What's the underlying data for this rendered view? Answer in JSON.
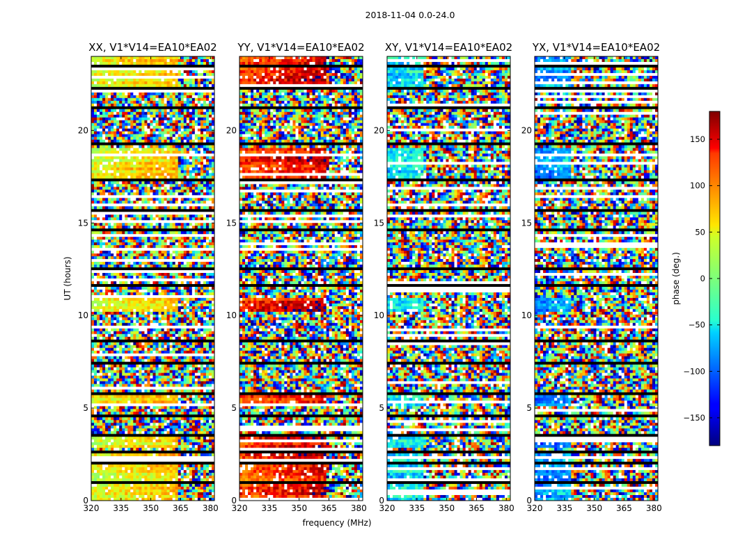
{
  "chart_data": {
    "type": "heatmap",
    "title": "2018-11-04 0.0-24.0",
    "xlabel": "frequency (MHz)",
    "ylabel": "UT (hours)",
    "xlim": [
      320,
      382
    ],
    "ylim": [
      0,
      24
    ],
    "x_ticks": [
      320,
      335,
      350,
      365,
      380
    ],
    "y_ticks": [
      0,
      5,
      10,
      15,
      20
    ],
    "panels": [
      {
        "id": "xx",
        "title": "XX, V1*V14=EA10*EA02",
        "base_phase": 40,
        "coherent_to": 364
      },
      {
        "id": "yy",
        "title": "YY, V1*V14=EA10*EA02",
        "base_phase": 120,
        "coherent_to": 364
      },
      {
        "id": "xy",
        "title": "XY, V1*V14=EA10*EA02",
        "base_phase": -60,
        "coherent_to": 338
      },
      {
        "id": "yx",
        "title": "YX, V1*V14=EA10*EA02",
        "base_phase": -90,
        "coherent_to": 338
      }
    ],
    "flagged_ut_ranges": [
      [
        0.9,
        1.05
      ],
      [
        1.95,
        2.1
      ],
      [
        2.55,
        2.65
      ],
      [
        3.45,
        3.55
      ],
      [
        4.5,
        4.6
      ],
      [
        5.75,
        5.85
      ],
      [
        7.35,
        7.45
      ],
      [
        8.5,
        8.75
      ],
      [
        11.5,
        11.7
      ],
      [
        12.5,
        12.6
      ],
      [
        14.6,
        14.7
      ],
      [
        15.6,
        15.7
      ],
      [
        17.25,
        17.35
      ],
      [
        19.2,
        19.3
      ],
      [
        21.2,
        21.3
      ],
      [
        22.2,
        22.3
      ],
      [
        23.4,
        23.5
      ]
    ],
    "coherent_ut_ranges": [
      [
        0,
        2.6
      ],
      [
        2.8,
        3.4
      ],
      [
        5.1,
        5.8
      ],
      [
        10.2,
        11.0
      ],
      [
        17.4,
        19.1
      ],
      [
        22.3,
        24
      ]
    ],
    "colorbar": {
      "label": "phase (deg.)",
      "range": [
        -180,
        180
      ],
      "ticks": [
        "150",
        "100",
        "50",
        "0",
        "−50",
        "−100",
        "−150"
      ],
      "tick_values": [
        150,
        100,
        50,
        0,
        -50,
        -100,
        -150
      ]
    }
  }
}
